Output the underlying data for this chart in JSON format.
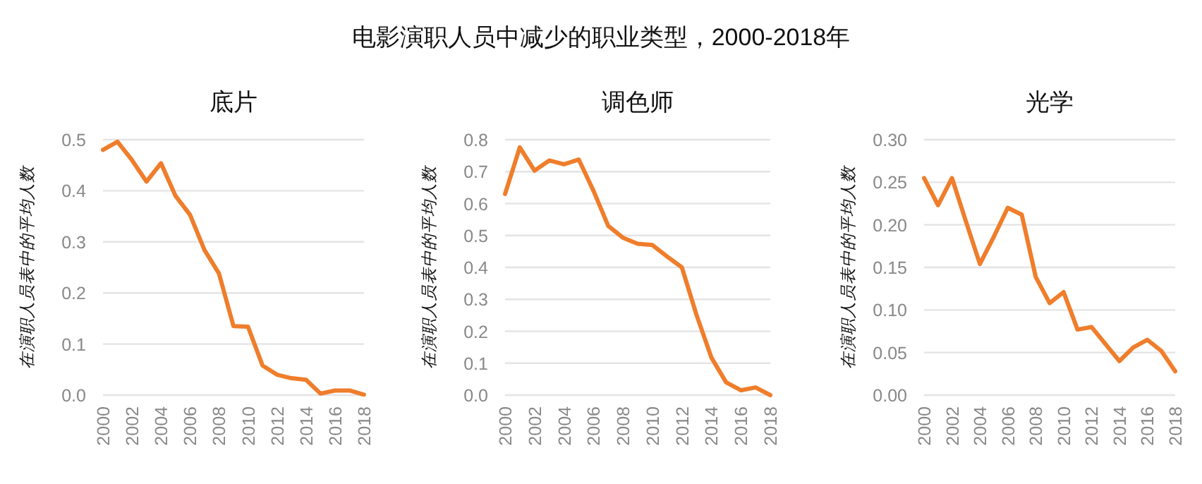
{
  "chart_data": [
    {
      "type": "line",
      "title": "底片",
      "annotations": [
        "电影演职人员中减少的职业类型，2000-2018年"
      ],
      "ylabel": "在演职人员表中的平均人数",
      "grid": "y",
      "line_style": "solid",
      "marker": "none",
      "x": [
        2000,
        2001,
        2002,
        2003,
        2004,
        2005,
        2006,
        2007,
        2008,
        2009,
        2010,
        2011,
        2012,
        2013,
        2014,
        2015,
        2016,
        2017,
        2018
      ],
      "xlim": [
        2000,
        2018
      ],
      "xticks": [
        2000,
        2002,
        2004,
        2006,
        2008,
        2010,
        2012,
        2014,
        2016,
        2018
      ],
      "ylim": [
        0,
        0.5
      ],
      "yticks": [
        {
          "value": 0,
          "label": "0.0"
        },
        0.1,
        0.2,
        0.3,
        0.4,
        0.5
      ],
      "series": [
        {
          "color": "#ef7d2b",
          "values": [
            0.48,
            0.496,
            0.46,
            0.418,
            0.454,
            0.39,
            0.353,
            0.284,
            0.238,
            0.135,
            0.134,
            0.058,
            0.04,
            0.033,
            0.03,
            0.003,
            0.009,
            0.009,
            0.001
          ]
        }
      ]
    },
    {
      "type": "line",
      "title": "调色师",
      "ylabel": "在演职人员表中的平均人数",
      "grid": "y",
      "line_style": "solid",
      "marker": "none",
      "x": [
        2000,
        2001,
        2002,
        2003,
        2004,
        2005,
        2006,
        2007,
        2008,
        2009,
        2010,
        2011,
        2012,
        2013,
        2014,
        2015,
        2016,
        2017,
        2018
      ],
      "xlim": [
        2000,
        2018
      ],
      "xticks": [
        2000,
        2002,
        2004,
        2006,
        2008,
        2010,
        2012,
        2014,
        2016,
        2018
      ],
      "ylim": [
        0,
        0.8
      ],
      "yticks": [
        {
          "value": 0,
          "label": "0.0"
        },
        0.1,
        0.2,
        0.3,
        0.4,
        0.5,
        0.6,
        0.7,
        0.8
      ],
      "series": [
        {
          "color": "#ef7d2b",
          "values": [
            0.63,
            0.776,
            0.703,
            0.735,
            0.723,
            0.738,
            0.64,
            0.53,
            0.493,
            0.474,
            0.47,
            0.434,
            0.4,
            0.25,
            0.118,
            0.04,
            0.015,
            0.024,
            0.0
          ]
        }
      ]
    },
    {
      "type": "line",
      "title": "光学",
      "ylabel": "在演职人员表中的平均人数",
      "grid": "y",
      "line_style": "solid",
      "marker": "none",
      "x": [
        2000,
        2001,
        2002,
        2003,
        2004,
        2005,
        2006,
        2007,
        2008,
        2009,
        2010,
        2011,
        2012,
        2013,
        2014,
        2015,
        2016,
        2017,
        2018
      ],
      "xlim": [
        2000,
        2018
      ],
      "xticks": [
        2000,
        2002,
        2004,
        2006,
        2008,
        2010,
        2012,
        2014,
        2016,
        2018
      ],
      "ylim": [
        0,
        0.3
      ],
      "yticks": [
        {
          "value": 0,
          "label": "0.00"
        },
        {
          "value": 0.05,
          "label": "0.05"
        },
        {
          "value": 0.1,
          "label": "0.10"
        },
        {
          "value": 0.15,
          "label": "0.15"
        },
        {
          "value": 0.2,
          "label": "0.20"
        },
        {
          "value": 0.25,
          "label": "0.25"
        },
        {
          "value": 0.3,
          "label": "0.30"
        }
      ],
      "series": [
        {
          "color": "#ef7d2b",
          "values": [
            0.255,
            0.223,
            0.255,
            0.204,
            0.154,
            0.186,
            0.22,
            0.212,
            0.139,
            0.108,
            0.121,
            0.077,
            0.08,
            0.06,
            0.04,
            0.056,
            0.065,
            0.052,
            0.028
          ]
        }
      ]
    }
  ]
}
